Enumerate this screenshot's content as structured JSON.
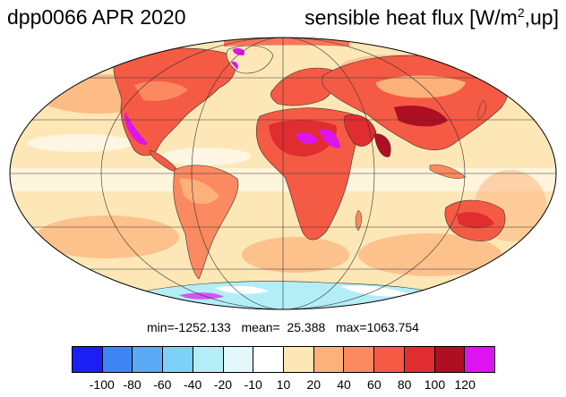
{
  "title": {
    "left": "dpp0066 APR 2020",
    "right_main": "sensible heat flux [W/m",
    "right_sup": "2",
    "right_tail": ",up]"
  },
  "stats": {
    "text": "min=-1252.133   mean=  25.388   max=1063.754"
  },
  "colorbar": {
    "colors": [
      "#1c1ff5",
      "#3f86f5",
      "#5aaaf5",
      "#7dd0f7",
      "#b3eef7",
      "#e2f8fb",
      "#ffffff",
      "#fde7b6",
      "#fcb07a",
      "#fb8a60",
      "#f55a45",
      "#e02d2f",
      "#ae0f22",
      "#dd14ef"
    ],
    "labels": [
      "-100",
      "-80",
      "-60",
      "-40",
      "-20",
      "-10",
      "10",
      "20",
      "40",
      "60",
      "80",
      "100",
      "120"
    ]
  }
}
